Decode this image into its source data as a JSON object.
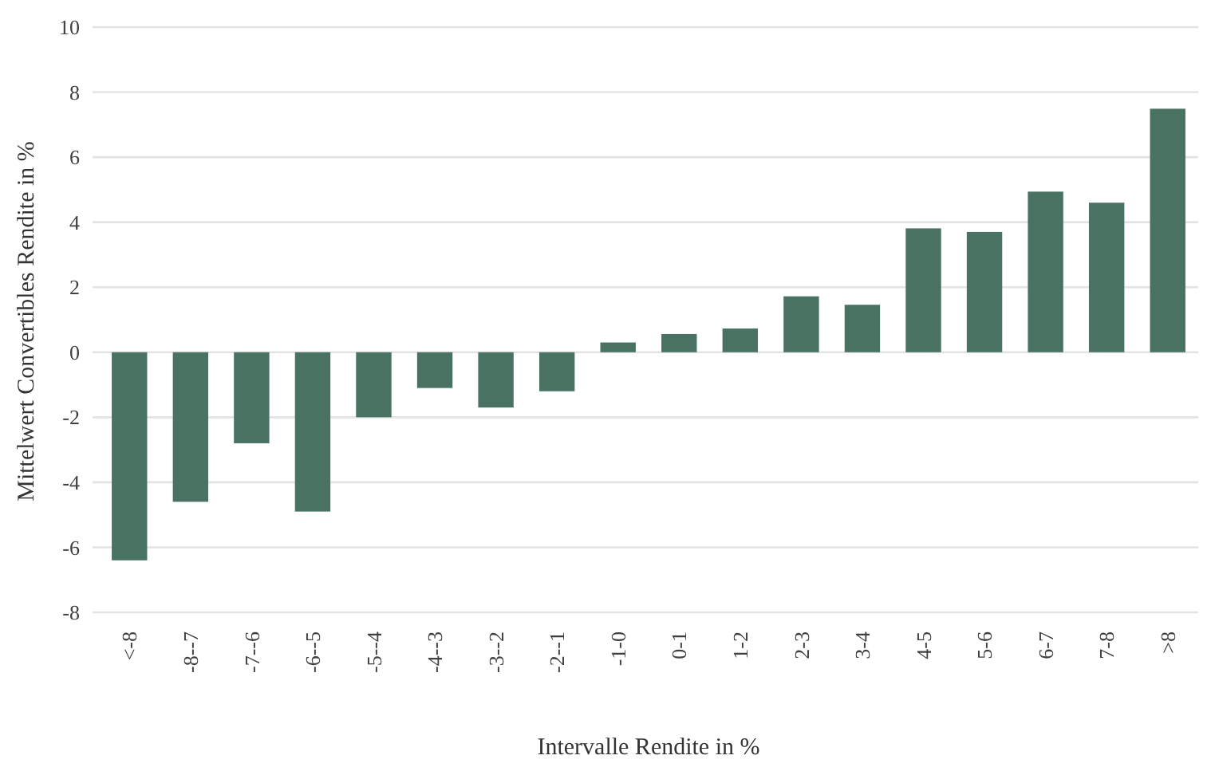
{
  "chart_data": {
    "type": "bar",
    "xlabel": "Intervalle Rendite in %",
    "ylabel": "Mittelwert Convertibles Rendite in %",
    "categories": [
      "<-8",
      "-8--7",
      "-7--6",
      "-6--5",
      "-5--4",
      "-4--3",
      "-3--2",
      "-2--1",
      "-1-0",
      "0-1",
      "1-2",
      "2-3",
      "3-4",
      "4-5",
      "5-6",
      "6-7",
      "7-8",
      ">8"
    ],
    "values": [
      -6.4,
      -4.6,
      -2.8,
      -4.9,
      -2.0,
      -1.1,
      -1.7,
      -1.2,
      0.3,
      0.56,
      0.73,
      1.72,
      1.46,
      3.81,
      3.7,
      4.94,
      4.6,
      7.49
    ],
    "color": "#4a7262",
    "ylim": [
      -8,
      10
    ],
    "yticks": [
      -8,
      -6,
      -4,
      -2,
      0,
      2,
      4,
      6,
      8,
      10
    ],
    "grid": "y"
  }
}
